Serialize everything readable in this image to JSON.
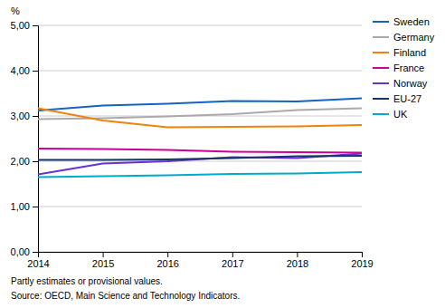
{
  "chart_data": {
    "type": "line",
    "ylabel": "%",
    "annotations": [
      "Partly estimates or provisional values.",
      "Source: OECD, Main Science and Technology Indicators."
    ],
    "x": [
      2014,
      2015,
      2016,
      2017,
      2018,
      2019
    ],
    "xlim": [
      2014,
      2019
    ],
    "xticks": [
      2014,
      2015,
      2016,
      2017,
      2018,
      2019
    ],
    "ylim": [
      0.0,
      5.0
    ],
    "yticks": [
      {
        "value": 0.0,
        "label": "0,00"
      },
      {
        "value": 1.0,
        "label": "1,00"
      },
      {
        "value": 2.0,
        "label": "2,00"
      },
      {
        "value": 3.0,
        "label": "3,00"
      },
      {
        "value": 4.0,
        "label": "4,00"
      },
      {
        "value": 5.0,
        "label": "5,00"
      }
    ],
    "grid": true,
    "legend": "right",
    "series": [
      {
        "name": "Sweden",
        "color": "#1565c0",
        "values": [
          3.12,
          3.23,
          3.27,
          3.33,
          3.32,
          3.39
        ]
      },
      {
        "name": "Germany",
        "color": "#aaaaaa",
        "values": [
          2.93,
          2.95,
          2.99,
          3.04,
          3.13,
          3.17
        ]
      },
      {
        "name": "Finland",
        "color": "#f0820f",
        "values": [
          3.17,
          2.9,
          2.75,
          2.76,
          2.77,
          2.8
        ]
      },
      {
        "name": "France",
        "color": "#cc0099",
        "values": [
          2.28,
          2.27,
          2.25,
          2.21,
          2.2,
          2.19
        ]
      },
      {
        "name": "Norway",
        "color": "#6633cc",
        "values": [
          1.71,
          1.95,
          2.0,
          2.09,
          2.07,
          2.17
        ]
      },
      {
        "name": "EU-27",
        "color": "#1a3366",
        "values": [
          2.03,
          2.03,
          2.04,
          2.07,
          2.11,
          2.12
        ]
      },
      {
        "name": "UK",
        "color": "#00aacc",
        "values": [
          1.65,
          1.67,
          1.69,
          1.72,
          1.73,
          1.76
        ]
      }
    ]
  }
}
